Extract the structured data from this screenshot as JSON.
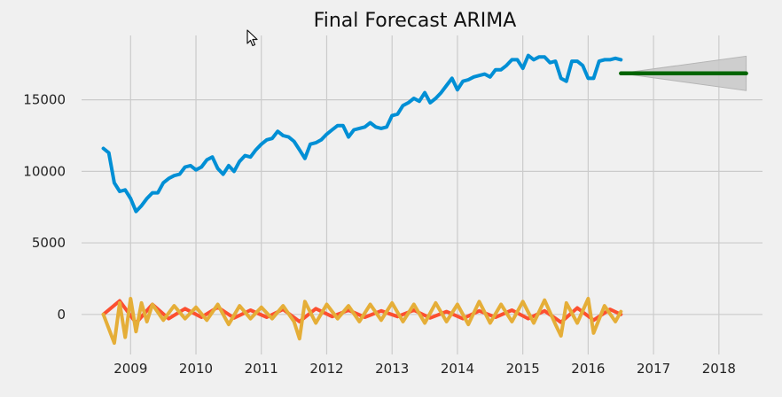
{
  "chart_data": {
    "type": "line",
    "title": "Final Forecast ARIMA",
    "xlabel": "",
    "ylabel": "",
    "x_ticks": [
      "2009",
      "2010",
      "2011",
      "2012",
      "2013",
      "2014",
      "2015",
      "2016",
      "2017",
      "2018"
    ],
    "y_ticks": [
      "0",
      "5000",
      "10000",
      "15000"
    ],
    "xlim": [
      "2008-04-01",
      "2018-09-01"
    ],
    "ylim": [
      -2800,
      19500
    ],
    "grid": true,
    "background": "#f0f0f0",
    "series": [
      {
        "role": "observed",
        "color": "#008fd5",
        "x": [
          "2008-08",
          "2008-09",
          "2008-10",
          "2008-11",
          "2008-12",
          "2009-01",
          "2009-02",
          "2009-03",
          "2009-04",
          "2009-05",
          "2009-06",
          "2009-07",
          "2009-08",
          "2009-09",
          "2009-10",
          "2009-11",
          "2009-12",
          "2010-01",
          "2010-02",
          "2010-03",
          "2010-04",
          "2010-05",
          "2010-06",
          "2010-07",
          "2010-08",
          "2010-09",
          "2010-10",
          "2010-11",
          "2010-12",
          "2011-01",
          "2011-02",
          "2011-03",
          "2011-04",
          "2011-05",
          "2011-06",
          "2011-07",
          "2011-08",
          "2011-09",
          "2011-10",
          "2011-11",
          "2011-12",
          "2012-01",
          "2012-02",
          "2012-03",
          "2012-04",
          "2012-05",
          "2012-06",
          "2012-07",
          "2012-08",
          "2012-09",
          "2012-10",
          "2012-11",
          "2012-12",
          "2013-01",
          "2013-02",
          "2013-03",
          "2013-04",
          "2013-05",
          "2013-06",
          "2013-07",
          "2013-08",
          "2013-09",
          "2013-10",
          "2013-11",
          "2013-12",
          "2014-01",
          "2014-02",
          "2014-03",
          "2014-04",
          "2014-05",
          "2014-06",
          "2014-07",
          "2014-08",
          "2014-09",
          "2014-10",
          "2014-11",
          "2014-12",
          "2015-01",
          "2015-02",
          "2015-03",
          "2015-04",
          "2015-05",
          "2015-06",
          "2015-07",
          "2015-08",
          "2015-09",
          "2015-10",
          "2015-11",
          "2015-12",
          "2016-01",
          "2016-02",
          "2016-03",
          "2016-04",
          "2016-05",
          "2016-06",
          "2016-07"
        ],
        "values": [
          11600,
          11300,
          9200,
          8600,
          8700,
          8100,
          7200,
          7600,
          8100,
          8500,
          8500,
          9200,
          9500,
          9700,
          9800,
          10300,
          10400,
          10100,
          10300,
          10800,
          11000,
          10200,
          9800,
          10400,
          10000,
          10700,
          11100,
          11000,
          11500,
          11900,
          12200,
          12300,
          12800,
          12500,
          12400,
          12100,
          11500,
          10900,
          11900,
          12000,
          12200,
          12600,
          12900,
          13200,
          13200,
          12400,
          12900,
          13000,
          13100,
          13400,
          13100,
          13000,
          13100,
          13900,
          14000,
          14600,
          14800,
          15100,
          14900,
          15500,
          14800,
          15100,
          15500,
          16000,
          16500,
          15700,
          16300,
          16400,
          16600,
          16700,
          16800,
          16600,
          17100,
          17100,
          17400,
          17800,
          17800,
          17200,
          18100,
          17800,
          18000,
          18000,
          17600,
          17700,
          16500,
          16300,
          17700,
          17700,
          17400,
          16500,
          16500,
          17700,
          17800,
          17800,
          17900,
          17800
        ]
      },
      {
        "role": "forecast",
        "color": "#006400",
        "x": [
          "2016-07",
          "2018-06"
        ],
        "values": [
          16850,
          16850
        ],
        "ci_low": [
          16850,
          15650
        ],
        "ci_high": [
          16850,
          18050
        ],
        "ci_color": "#c8c8c8"
      },
      {
        "role": "residuals_red",
        "color": "#fc4f30",
        "x": [
          "2008-08",
          "2008-11",
          "2009-02",
          "2009-05",
          "2009-08",
          "2009-11",
          "2010-02",
          "2010-05",
          "2010-08",
          "2010-11",
          "2011-02",
          "2011-05",
          "2011-08",
          "2011-11",
          "2012-02",
          "2012-05",
          "2012-08",
          "2012-11",
          "2013-02",
          "2013-05",
          "2013-08",
          "2013-11",
          "2014-02",
          "2014-05",
          "2014-08",
          "2014-11",
          "2015-02",
          "2015-05",
          "2015-08",
          "2015-11",
          "2016-02",
          "2016-05",
          "2016-07"
        ],
        "values": [
          0,
          950,
          -600,
          700,
          -300,
          400,
          -200,
          500,
          -250,
          300,
          -200,
          350,
          -500,
          400,
          -150,
          300,
          -200,
          250,
          -150,
          300,
          -250,
          200,
          -300,
          250,
          -200,
          300,
          -300,
          250,
          -550,
          450,
          -400,
          350,
          0
        ]
      },
      {
        "role": "residuals_yellow",
        "color": "#e5ae38",
        "x": [
          "2008-08",
          "2008-10",
          "2008-11",
          "2008-12",
          "2009-01",
          "2009-02",
          "2009-03",
          "2009-04",
          "2009-05",
          "2009-07",
          "2009-09",
          "2009-11",
          "2010-01",
          "2010-03",
          "2010-05",
          "2010-07",
          "2010-09",
          "2010-11",
          "2011-01",
          "2011-03",
          "2011-05",
          "2011-07",
          "2011-08",
          "2011-09",
          "2011-11",
          "2012-01",
          "2012-03",
          "2012-05",
          "2012-07",
          "2012-09",
          "2012-11",
          "2013-01",
          "2013-03",
          "2013-05",
          "2013-07",
          "2013-09",
          "2013-11",
          "2014-01",
          "2014-03",
          "2014-05",
          "2014-07",
          "2014-09",
          "2014-11",
          "2015-01",
          "2015-03",
          "2015-05",
          "2015-07",
          "2015-08",
          "2015-09",
          "2015-11",
          "2016-01",
          "2016-02",
          "2016-04",
          "2016-06",
          "2016-07"
        ],
        "values": [
          0,
          -2000,
          800,
          -1600,
          1100,
          -1200,
          800,
          -500,
          700,
          -400,
          600,
          -300,
          500,
          -400,
          700,
          -700,
          600,
          -300,
          500,
          -300,
          600,
          -500,
          -1700,
          900,
          -600,
          700,
          -300,
          600,
          -500,
          700,
          -400,
          800,
          -500,
          700,
          -600,
          800,
          -500,
          700,
          -700,
          900,
          -600,
          700,
          -500,
          900,
          -600,
          1000,
          -700,
          -1500,
          800,
          -600,
          1100,
          -1300,
          600,
          -500,
          200
        ]
      }
    ]
  }
}
